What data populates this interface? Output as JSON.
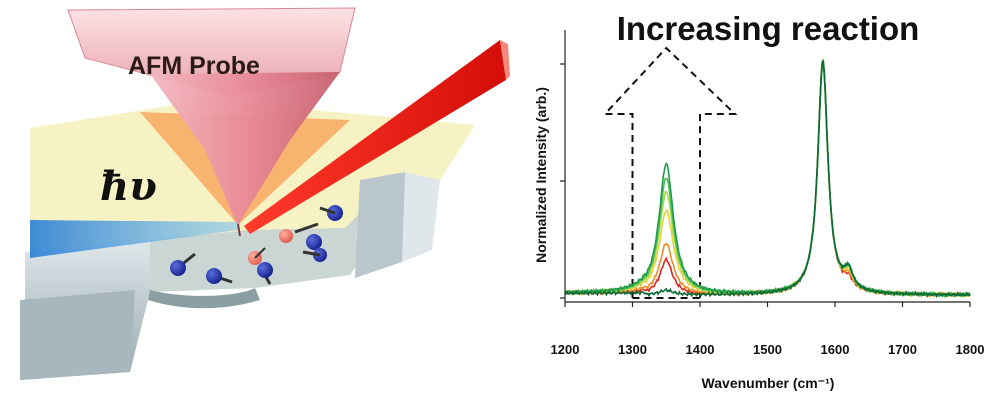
{
  "scene": {
    "probe_label": "AFM Probe",
    "photon_label": "ħυ"
  },
  "chart_data": {
    "type": "line",
    "title": "Increasing reaction",
    "xlabel": "Wavenumber (cm⁻¹)",
    "ylabel": "Normalized Intensity (arb.)",
    "xlim": [
      1200,
      1800
    ],
    "ylim": [
      0,
      1
    ],
    "x_ticks": [
      1200,
      1300,
      1400,
      1500,
      1600,
      1700,
      1800
    ],
    "y_ticks": [
      0,
      0.5,
      1
    ],
    "grid": false,
    "annotation": {
      "shape": "dashed-up-arrow",
      "x_range": [
        1300,
        1400
      ],
      "label": "Increasing reaction"
    },
    "series": [
      {
        "color": "#d62a20",
        "d_peak": 0.15,
        "d_width": 11,
        "g_peak": 1.0,
        "shoulder": 0.04
      },
      {
        "color": "#f08c2a",
        "d_peak": 0.22,
        "d_width": 12,
        "g_peak": 1.0,
        "shoulder": 0.05
      },
      {
        "color": "#e8d23a",
        "d_peak": 0.36,
        "d_width": 13,
        "g_peak": 1.0,
        "shoulder": 0.06
      },
      {
        "color": "#a7d94a",
        "d_peak": 0.44,
        "d_width": 13,
        "g_peak": 0.99,
        "shoulder": 0.07
      },
      {
        "color": "#4fbf5a",
        "d_peak": 0.5,
        "d_width": 13,
        "g_peak": 0.99,
        "shoulder": 0.08
      },
      {
        "color": "#1f9a4a",
        "d_peak": 0.56,
        "d_width": 13,
        "g_peak": 1.0,
        "shoulder": 0.08
      },
      {
        "color": "#0e6b36",
        "d_peak": 0.02,
        "d_width": 12,
        "g_peak": 1.0,
        "shoulder": 0.08
      }
    ],
    "peaks": {
      "d_center": 1350,
      "g_center": 1582,
      "g_width": 9,
      "shoulder_center": 1620
    }
  }
}
